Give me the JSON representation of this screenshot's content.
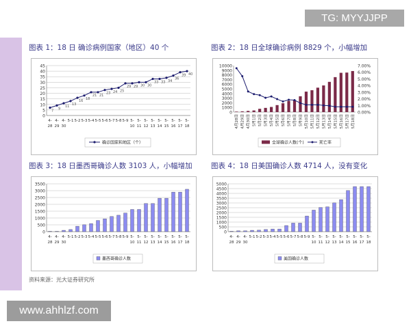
{
  "watermark_top": "TG: MYYJJPP",
  "watermark_bottom": "www.ahhlzf.com",
  "titles": [
    "图表 1：18 日 确诊病例国家（地区）40 个",
    "图表 2：18 日全球确诊病例 8829 个，小幅增加",
    "图表 3：18 日墨西哥确诊人数 3103 人，小幅增加",
    "图表 4：18 日美国确诊人数 4714 人，没有变化"
  ],
  "source": "资料来源：光大证券研究所",
  "chart_data": [
    {
      "type": "line",
      "categories": [
        "4-28",
        "4-29",
        "4-30",
        "5-1",
        "5-2",
        "5-3",
        "5-4",
        "5-5",
        "5-6",
        "5-7",
        "5-8",
        "5-9",
        "5-10",
        "5-11",
        "5-12",
        "5-13",
        "5-14",
        "5-15",
        "5-16",
        "5-17",
        "5-18"
      ],
      "series": [
        {
          "name": "确诊国家和地区（个）",
          "values": [
            7,
            9,
            11,
            13,
            16,
            18,
            21,
            21,
            23,
            24,
            25,
            29,
            29,
            30,
            30,
            33,
            33,
            34,
            36,
            39,
            40
          ]
        }
      ],
      "ylim": [
        0,
        45
      ],
      "yticks": [
        0,
        5,
        10,
        15,
        20,
        25,
        30,
        35,
        40,
        45
      ],
      "data_labels": true,
      "grid": true,
      "legend": "bottom",
      "color": "#1c1c6e"
    },
    {
      "type": "bar+line",
      "categories": [
        "4月28日",
        "4月29日",
        "4月30日",
        "5月1日",
        "5月2日",
        "5月3日",
        "5月4日",
        "5月5日",
        "5月6日",
        "5月7日",
        "5月8日",
        "5月9日",
        "5月10日",
        "5月11日",
        "5月12日",
        "5月13日",
        "5月14日",
        "5月15日",
        "5月16日",
        "5月17日",
        "5月18日"
      ],
      "series": [
        {
          "name": "全球确诊人数(个)",
          "type": "bar",
          "axis": "left",
          "values": [
            100,
            150,
            250,
            350,
            700,
            900,
            1100,
            1500,
            1900,
            2400,
            2500,
            3400,
            4400,
            4700,
            5250,
            5730,
            6500,
            7520,
            8450,
            8500,
            8829
          ]
        },
        {
          "name": "死亡率",
          "type": "line",
          "axis": "right",
          "values": [
            6.6,
            5.4,
            3.1,
            2.7,
            2.55,
            2.15,
            2.35,
            1.95,
            1.6,
            1.85,
            1.8,
            1.35,
            1.1,
            1.1,
            1.1,
            1.0,
            0.95,
            0.8,
            0.8,
            0.8,
            0.8
          ]
        }
      ],
      "ylim": [
        0,
        10000
      ],
      "yticks": [
        0,
        1000,
        2000,
        3000,
        4000,
        5000,
        6000,
        7000,
        8000,
        9000,
        10000
      ],
      "y2lim": [
        0,
        7
      ],
      "y2ticks": [
        "0.00%",
        "1.00%",
        "2.00%",
        "3.00%",
        "4.00%",
        "5.00%",
        "6.00%",
        "7.00%"
      ],
      "legend": "bottom",
      "bar_color": "#7b2a48",
      "line_color": "#1c1c6e"
    },
    {
      "type": "bar",
      "categories": [
        "4-28",
        "4-29",
        "4-30",
        "5-1",
        "5-2",
        "5-3",
        "5-4",
        "5-5",
        "5-6",
        "5-7",
        "5-8",
        "5-9",
        "5-10",
        "5-11",
        "5-12",
        "5-13",
        "5-14",
        "5-15",
        "5-16",
        "5-17",
        "5-18"
      ],
      "series": [
        {
          "name": "墨西哥确诊人数",
          "values": [
            26,
            26,
            99,
            156,
            397,
            506,
            590,
            822,
            942,
            1112,
            1204,
            1364,
            1626,
            1626,
            2059,
            2059,
            2446,
            2446,
            2895,
            2895,
            3103
          ]
        }
      ],
      "ylim": [
        0,
        3500
      ],
      "yticks": [
        0,
        500,
        1000,
        1500,
        2000,
        2500,
        3000,
        3500
      ],
      "grid": true,
      "legend": "bottom",
      "color": "#8c8cf0"
    },
    {
      "type": "bar",
      "categories": [
        "4-28",
        "4-29",
        "4-30",
        "5-1",
        "5-2",
        "5-3",
        "5-4",
        "5-5",
        "5-6",
        "5-7",
        "5-8",
        "5-9",
        "5-10",
        "5-11",
        "5-12",
        "5-13",
        "5-14",
        "5-15",
        "5-16",
        "5-17",
        "5-18"
      ],
      "series": [
        {
          "name": "美国确诊人数",
          "values": [
            40,
            91,
            91,
            141,
            160,
            226,
            279,
            279,
            642,
            896,
            896,
            1639,
            2254,
            2532,
            2600,
            3009,
            3352,
            4298,
            4714,
            4714,
            4714
          ]
        }
      ],
      "ylim": [
        0,
        5000
      ],
      "yticks": [
        0,
        500,
        1000,
        1500,
        2000,
        2500,
        3000,
        3500,
        4000,
        4500,
        5000
      ],
      "grid": true,
      "legend": "bottom",
      "color": "#8c8cf0"
    }
  ]
}
